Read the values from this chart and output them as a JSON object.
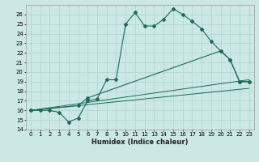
{
  "xlabel": "Humidex (Indice chaleur)",
  "bg_color": "#cbe8e4",
  "grid_color": "#b0d8d0",
  "line_color": "#1a6b5a",
  "xlim": [
    -0.5,
    23.5
  ],
  "ylim": [
    14,
    27
  ],
  "yticks": [
    14,
    15,
    16,
    17,
    18,
    19,
    20,
    21,
    22,
    23,
    24,
    25,
    26
  ],
  "xticks": [
    0,
    1,
    2,
    3,
    4,
    5,
    6,
    7,
    8,
    9,
    10,
    11,
    12,
    13,
    14,
    15,
    16,
    17,
    18,
    19,
    20,
    21,
    22,
    23
  ],
  "series1_x": [
    0,
    1,
    2,
    3,
    4,
    5,
    6,
    7,
    8,
    9,
    10,
    11,
    12,
    13,
    14,
    15,
    16,
    17,
    18,
    19,
    20,
    21,
    22,
    23
  ],
  "series1_y": [
    16.0,
    16.0,
    16.0,
    15.8,
    14.8,
    15.2,
    17.0,
    17.2,
    19.2,
    19.2,
    25.0,
    26.2,
    24.8,
    24.8,
    25.5,
    26.6,
    26.0,
    25.3,
    24.5,
    23.2,
    22.2,
    21.3,
    19.0,
    19.0
  ],
  "series2_x": [
    0,
    5,
    6,
    20,
    21,
    22,
    23
  ],
  "series2_y": [
    16.0,
    16.5,
    17.3,
    22.2,
    21.3,
    19.0,
    19.0
  ],
  "series3_x": [
    0,
    23
  ],
  "series3_y": [
    16.0,
    19.2
  ],
  "series4_x": [
    0,
    23
  ],
  "series4_y": [
    16.0,
    18.3
  ]
}
